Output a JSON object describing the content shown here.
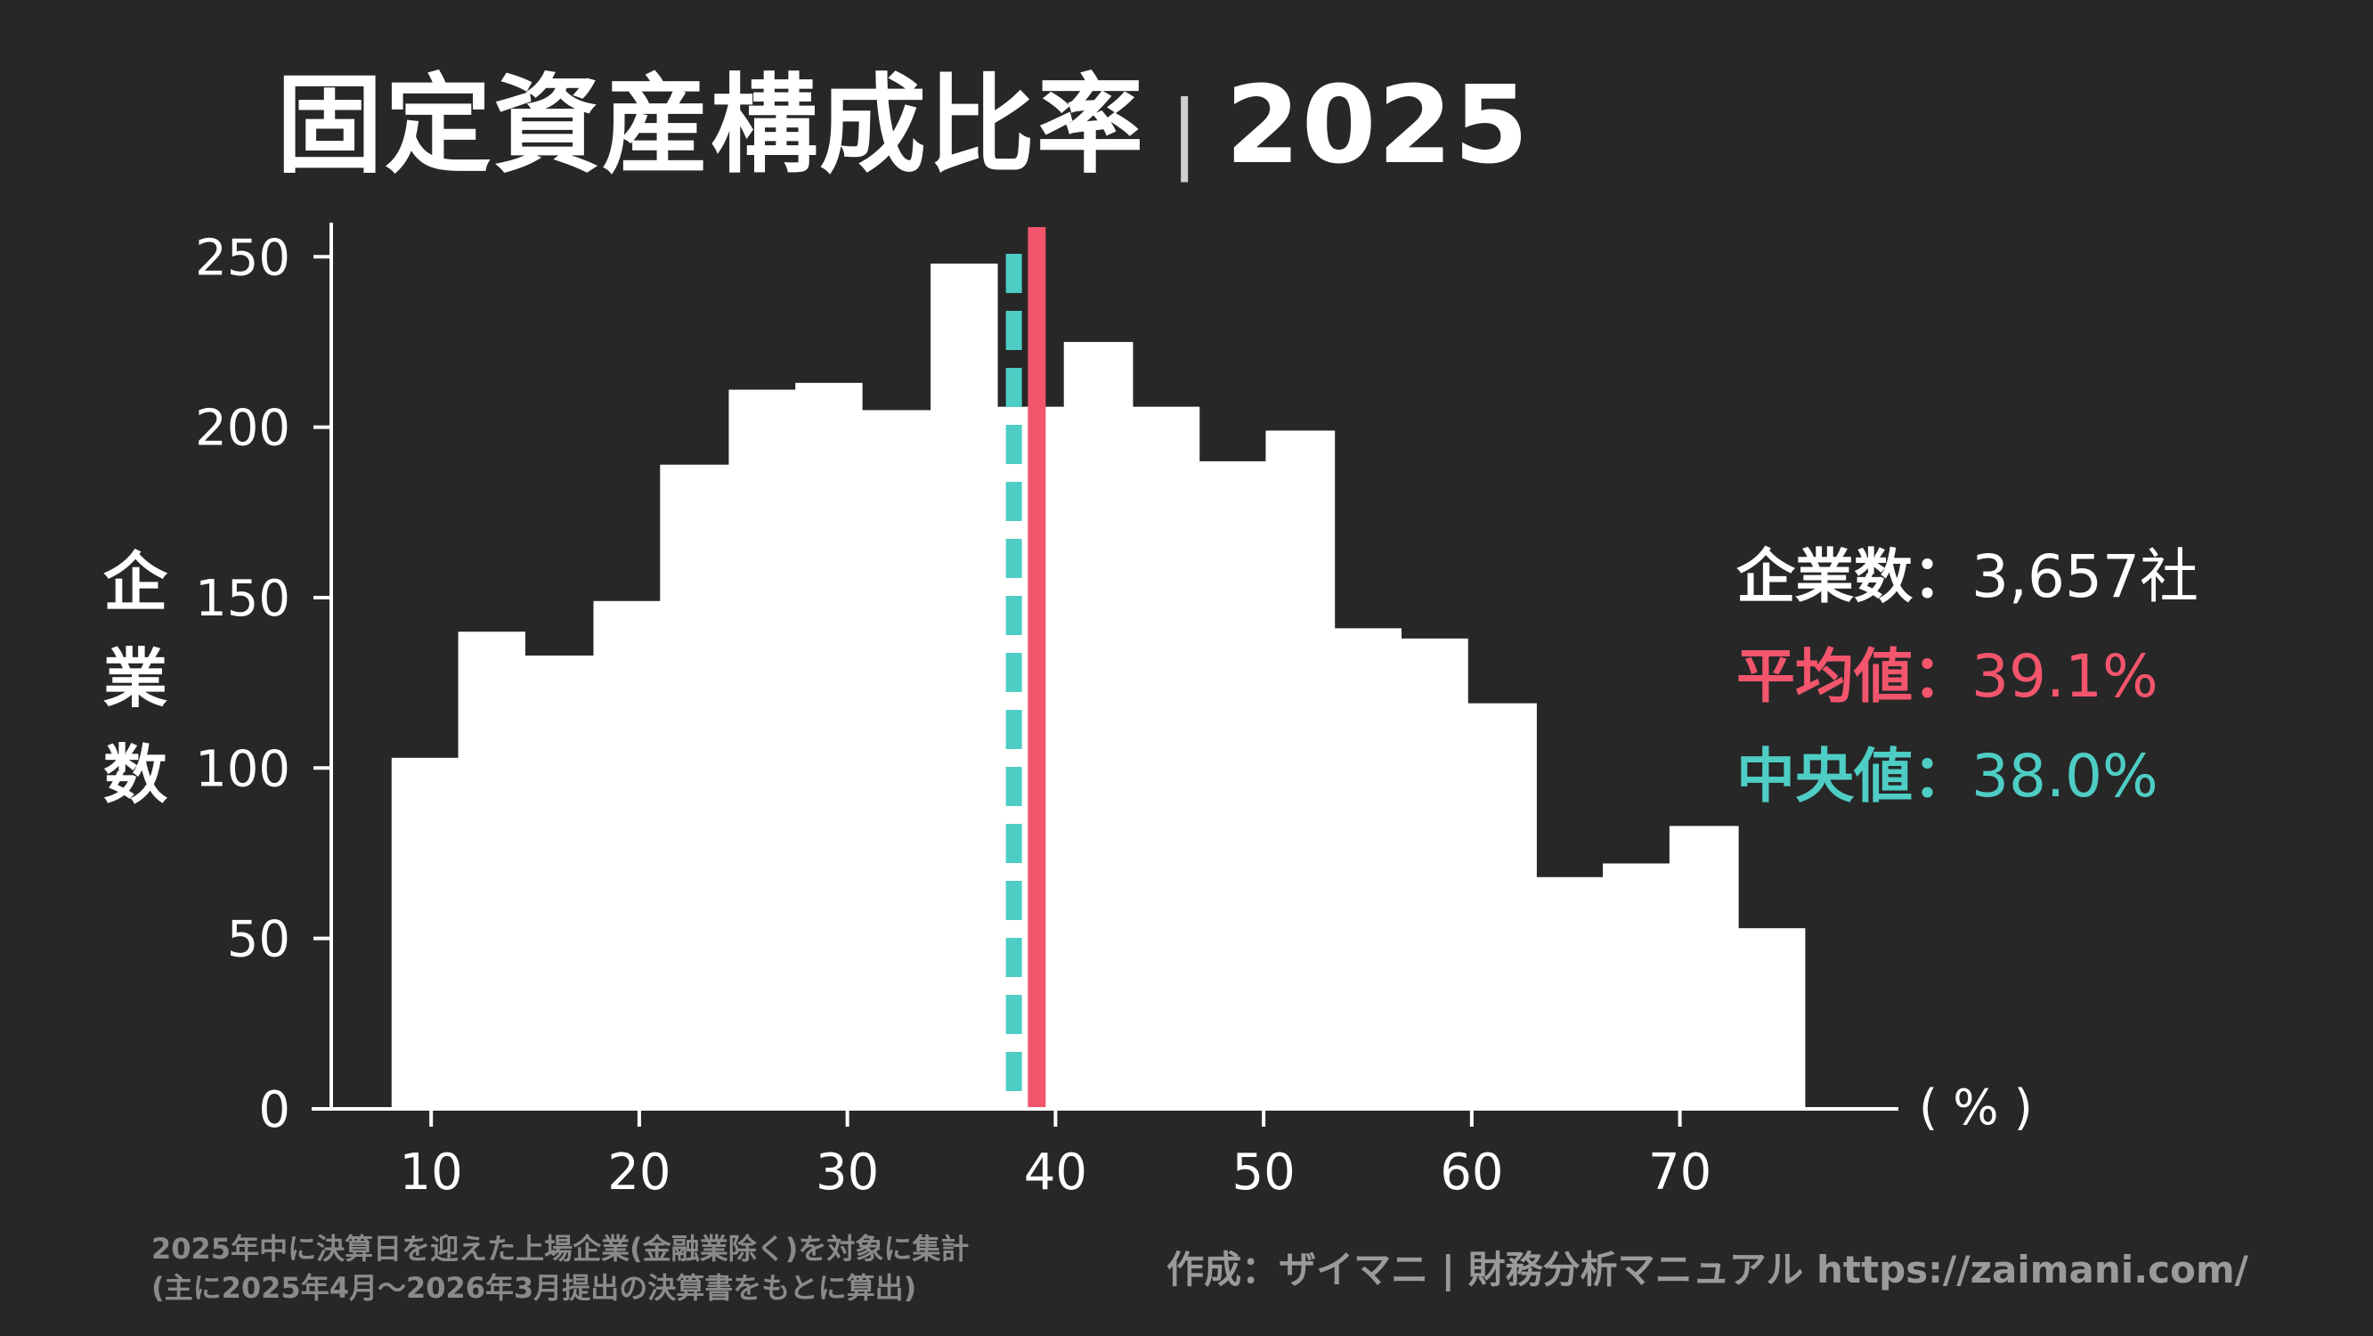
{
  "header": {
    "title": "固定資産構成比率",
    "separator": "|",
    "year": "2025"
  },
  "axis": {
    "ylabel_chars": [
      "企",
      "業",
      "数"
    ],
    "x_unit": "( % )"
  },
  "stats": {
    "count_label": "企業数",
    "count_value": "3,657社",
    "mean_label": "平均値",
    "mean_value": "39.1%",
    "median_label": "中央値",
    "median_value": "38.0%",
    "colon": "："
  },
  "footer": {
    "note_line1": "2025年中に決算日を迎えた上場企業(金融業除く)を対象に集計",
    "note_line2": "(主に2025年4月〜2026年3月提出の決算書をもとに算出)",
    "credit": "作成：ザイマニ | 財務分析マニュアル https://zaimani.com/"
  },
  "colors": {
    "background": "#272727",
    "bars": "#ffffff",
    "mean_line": "#f2556c",
    "median_line": "#4ecdc4",
    "axis": "#ffffff"
  },
  "chart_data": {
    "type": "bar",
    "subtype": "histogram",
    "title": "固定資産構成比率",
    "xlabel": "( % )",
    "ylabel": "企業数",
    "xlim": [
      5.2,
      80.5
    ],
    "ylim": [
      0,
      260
    ],
    "x_ticks": [
      10,
      20,
      30,
      40,
      50,
      60,
      70
    ],
    "y_ticks": [
      0,
      50,
      100,
      150,
      200,
      250
    ],
    "bins": [
      {
        "start": 8.1,
        "end": 11.3,
        "count": 103
      },
      {
        "start": 11.3,
        "end": 14.5,
        "count": 140
      },
      {
        "start": 14.5,
        "end": 17.8,
        "count": 133
      },
      {
        "start": 17.8,
        "end": 21.0,
        "count": 149
      },
      {
        "start": 21.0,
        "end": 24.3,
        "count": 189
      },
      {
        "start": 24.3,
        "end": 27.5,
        "count": 211
      },
      {
        "start": 27.5,
        "end": 30.7,
        "count": 213
      },
      {
        "start": 30.7,
        "end": 34.0,
        "count": 205
      },
      {
        "start": 34.0,
        "end": 37.2,
        "count": 248
      },
      {
        "start": 37.2,
        "end": 40.4,
        "count": 206
      },
      {
        "start": 40.4,
        "end": 43.7,
        "count": 225
      },
      {
        "start": 43.7,
        "end": 46.9,
        "count": 206
      },
      {
        "start": 46.9,
        "end": 50.1,
        "count": 190
      },
      {
        "start": 50.1,
        "end": 53.4,
        "count": 199
      },
      {
        "start": 53.4,
        "end": 56.6,
        "count": 141
      },
      {
        "start": 56.6,
        "end": 59.8,
        "count": 138
      },
      {
        "start": 59.8,
        "end": 63.1,
        "count": 119
      },
      {
        "start": 63.1,
        "end": 66.3,
        "count": 68
      },
      {
        "start": 66.3,
        "end": 69.5,
        "count": 72
      },
      {
        "start": 69.5,
        "end": 72.8,
        "count": 83
      },
      {
        "start": 72.8,
        "end": 76.0,
        "count": 53
      }
    ],
    "mean": 39.1,
    "median": 38.0,
    "total_companies": 3657,
    "grid": false
  }
}
